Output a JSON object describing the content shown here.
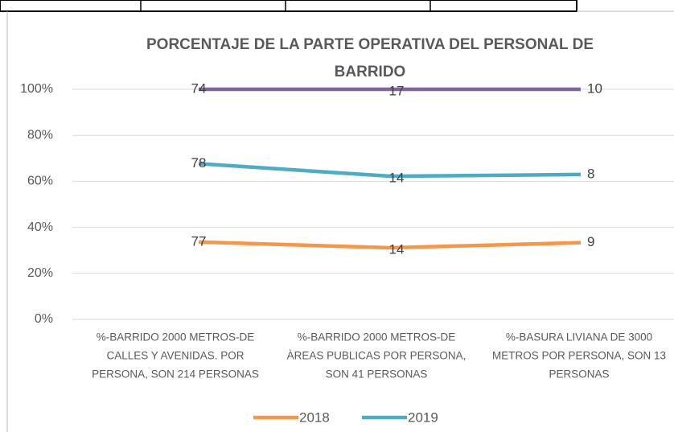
{
  "chart_data": {
    "type": "line",
    "stacking": "percent",
    "title": [
      "PORCENTAJE DE LA PARTE OPERATIVA DEL PERSONAL DE",
      "BARRIDO"
    ],
    "categories": [
      [
        "%-BARRIDO 2000 METROS-DE",
        "CALLES Y AVENIDAS. POR",
        "PERSONA, SON 214 PERSONAS"
      ],
      [
        "%-BARRIDO 2000 METROS-DE",
        "ÀREAS PUBLICAS POR PERSONA,",
        "SON 41 PERSONAS"
      ],
      [
        "%-BASURA LIVIANA DE 3000",
        "METROS POR PERSONA, SON 13",
        "PERSONAS"
      ]
    ],
    "series": [
      {
        "name": "2018",
        "color": "#f79646",
        "values": [
          77,
          14,
          9
        ]
      },
      {
        "name": "2019",
        "color": "#4bacc6",
        "values": [
          78,
          14,
          8
        ]
      },
      {
        "color": "#8064a2",
        "values": [
          74,
          17,
          10
        ]
      }
    ],
    "ylim": [
      0,
      100
    ],
    "yticks": [
      {
        "value": 0,
        "label": "0%"
      },
      {
        "value": 20,
        "label": "20%"
      },
      {
        "value": 40,
        "label": "40%"
      },
      {
        "value": 60,
        "label": "60%"
      },
      {
        "value": 80,
        "label": "80%"
      },
      {
        "value": 100,
        "label": "100%"
      }
    ],
    "grid": true,
    "legend": "bottom"
  }
}
